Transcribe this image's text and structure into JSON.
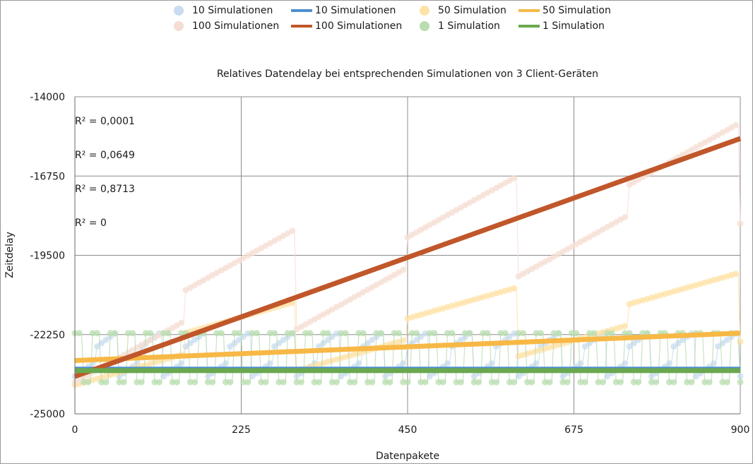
{
  "chart_data": {
    "type": "scatter",
    "title": "Relatives Datendelay bei entsprechenden Simulationen von 3 Client-Geräten",
    "xlabel": "Datenpakete",
    "ylabel": "Zeitdelay",
    "xlim": [
      0,
      900
    ],
    "ylim": [
      -25000,
      -14000
    ],
    "xticks": [
      "0",
      "225",
      "450",
      "675",
      "900"
    ],
    "yticks": [
      "-14000",
      "-16750",
      "-19500",
      "-22250",
      "-25000"
    ],
    "grid": true,
    "legend_position": "top",
    "series": [
      {
        "name": "10 Simulationen",
        "kind": "points",
        "color": "#c9dcf0",
        "pattern": "sawtooth",
        "period": 30,
        "low": -23700,
        "high": -22100,
        "trend": [
          0,
          0
        ]
      },
      {
        "name": "10 Simulationen",
        "kind": "trendline",
        "color": "#4f8fd0",
        "x": [
          0,
          900
        ],
        "y": [
          -23450,
          -23450
        ]
      },
      {
        "name": "50 Simulation",
        "kind": "points",
        "color": "#ffe2a6",
        "pattern": "sawtooth",
        "period": 150,
        "low": -24000,
        "high": -21600,
        "trend": [
          0,
          1500
        ]
      },
      {
        "name": "50 Simulation",
        "kind": "trendline",
        "color": "#f7b846",
        "x": [
          0,
          900
        ],
        "y": [
          -23150,
          -22200
        ]
      },
      {
        "name": "100 Simulationen",
        "kind": "points",
        "color": "#f6ddd3",
        "pattern": "sawtooth",
        "period": 150,
        "low": -23900,
        "high": -20400,
        "trend": [
          0,
          5500
        ]
      },
      {
        "name": "100 Simulationen",
        "kind": "trendline",
        "color": "#c0572a",
        "x": [
          0,
          900
        ],
        "y": [
          -23700,
          -15450
        ]
      },
      {
        "name": "1 Simulation",
        "kind": "points",
        "color": "#b9ddb0",
        "pattern": "alternate",
        "levels": [
          -22200,
          -23900
        ]
      },
      {
        "name": "1 Simulation",
        "kind": "trendline",
        "color": "#6aa84f",
        "x": [
          0,
          900
        ],
        "y": [
          -23500,
          -23500
        ]
      }
    ],
    "annotations": [
      "R² = 0,0001",
      "R² = 0,0649",
      "R² = 0,8713",
      "R² = 0"
    ]
  }
}
